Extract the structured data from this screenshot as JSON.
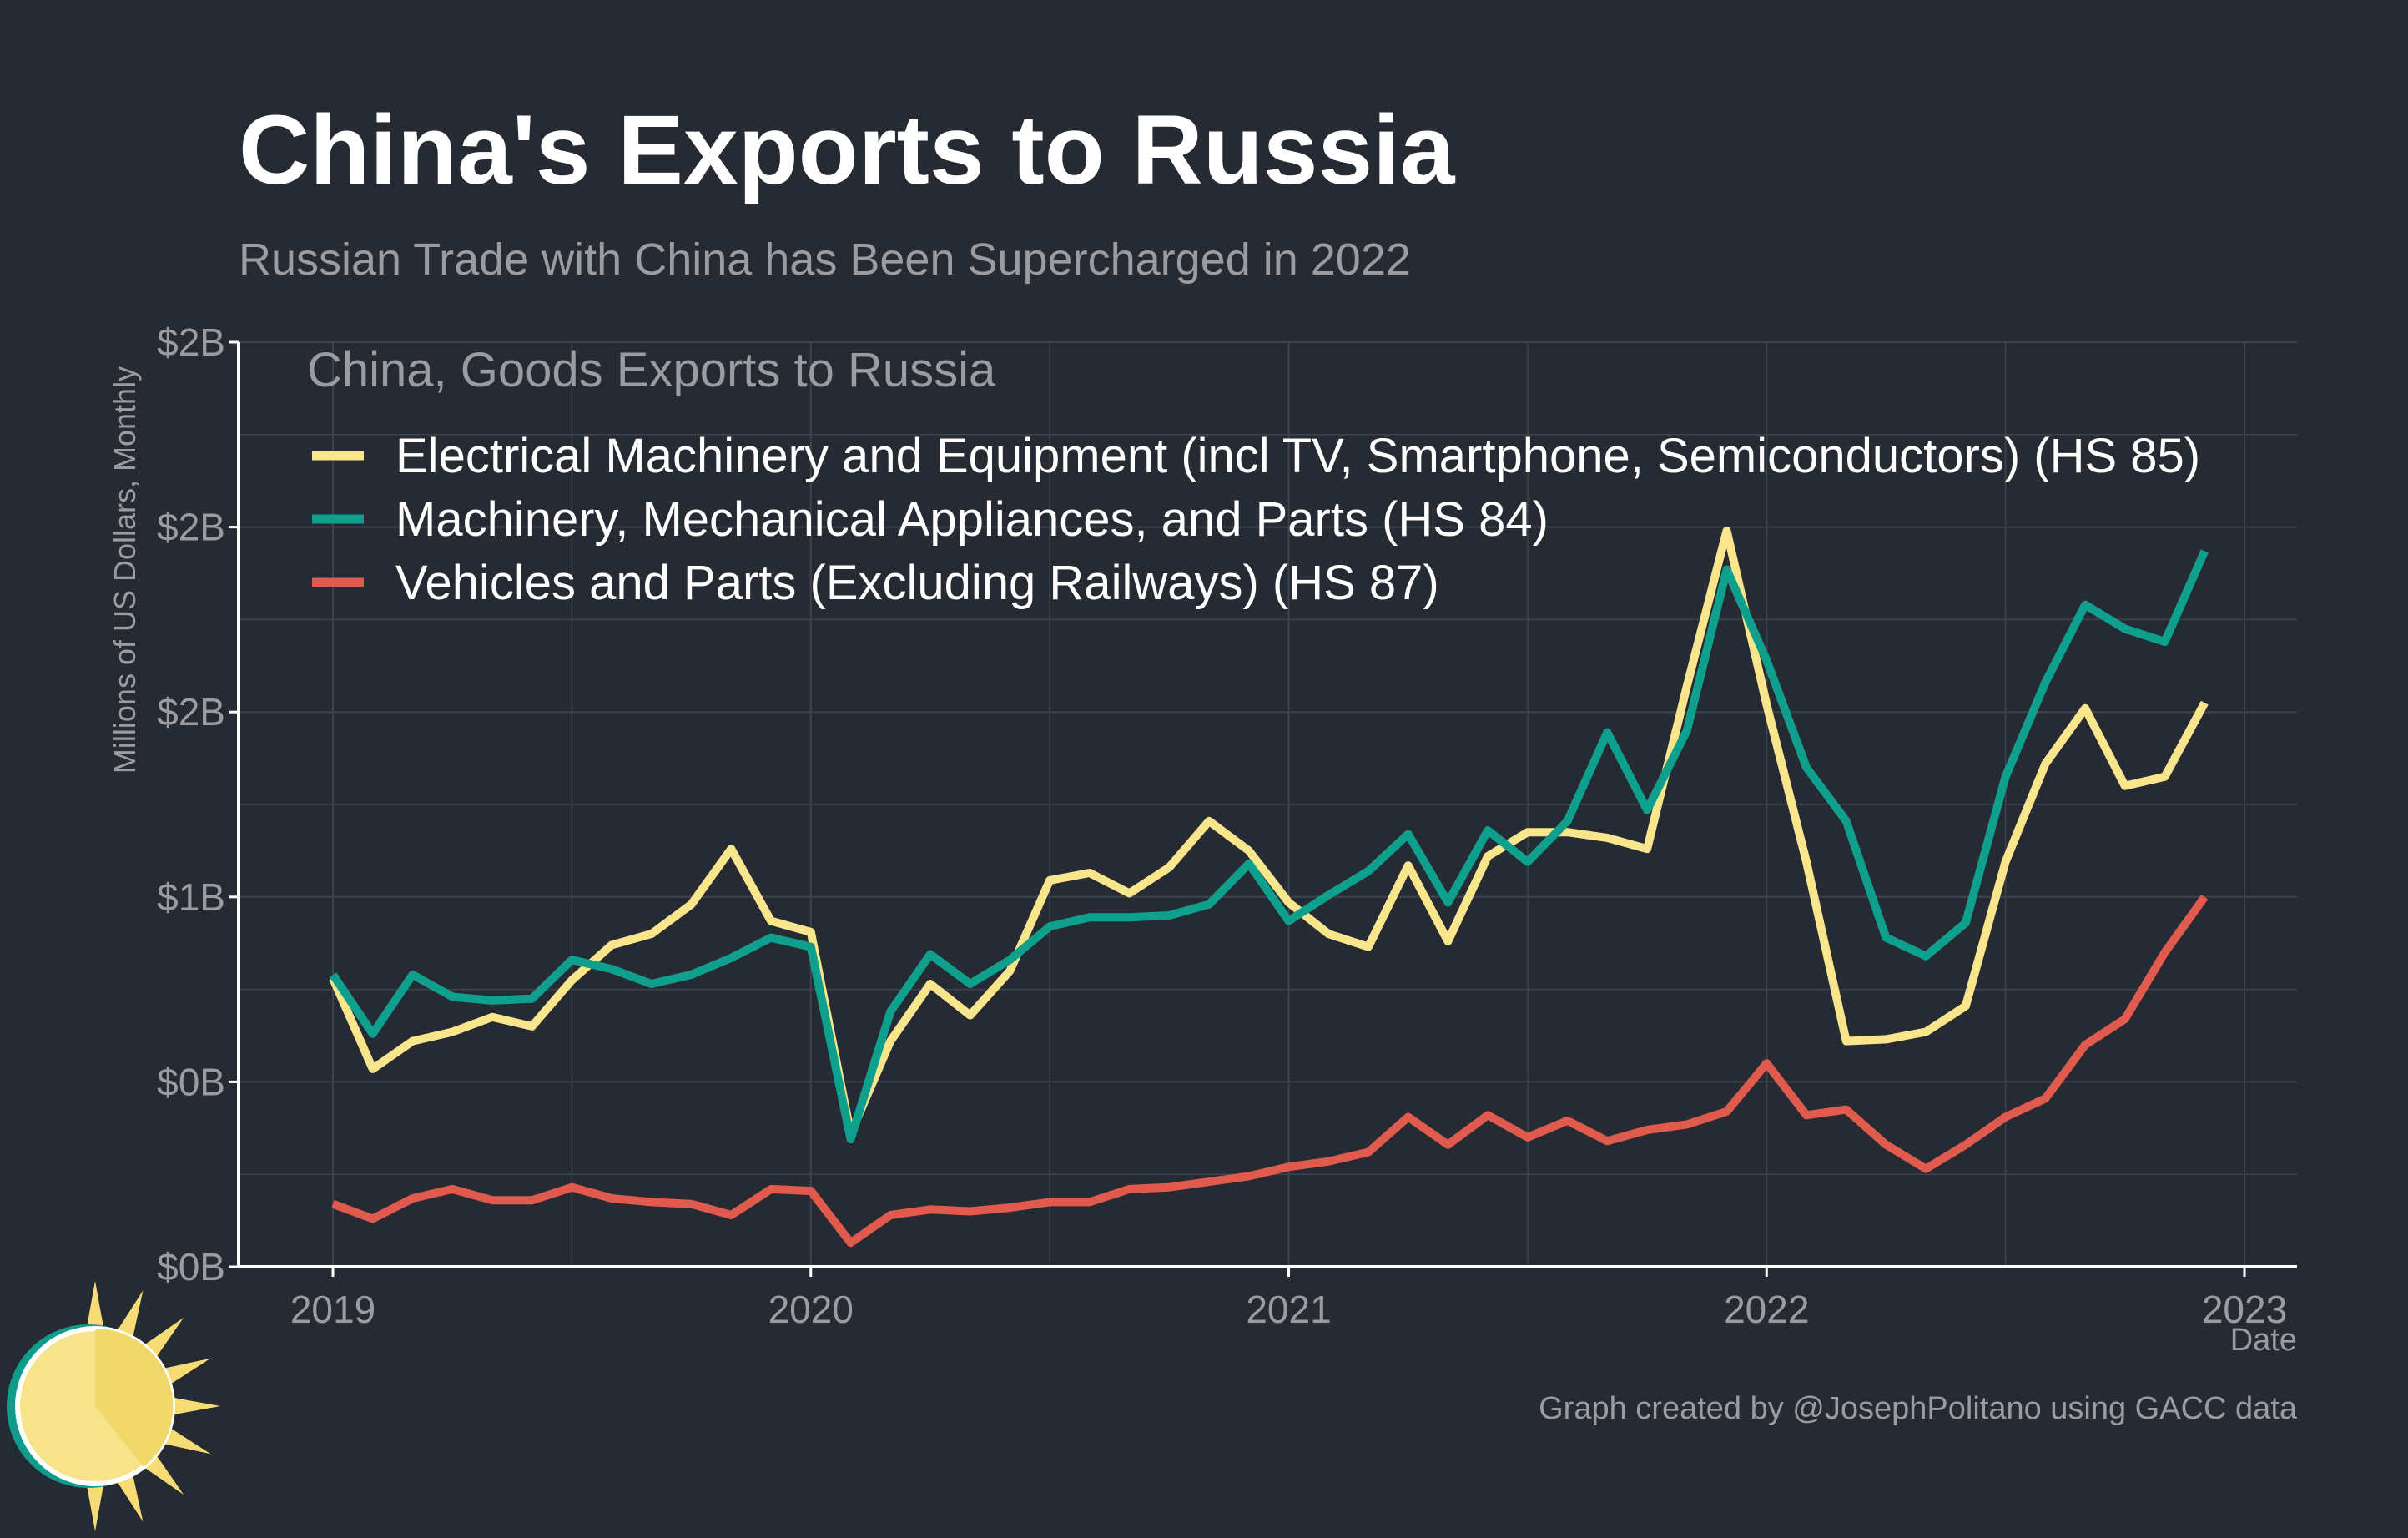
{
  "title": "China's Exports to Russia",
  "subtitle": "Russian Trade with China has Been Supercharged in 2022",
  "caption": "Graph created by @JosephPolitano using GACC data",
  "colors": {
    "background": "#252a33",
    "title": "#ffffff",
    "muted_text": "#9a9ca2",
    "grid": "#3e434c",
    "axis": "#ffffff",
    "logo_sun": "#f5dc74",
    "logo_ring": "#0f9c8c"
  },
  "chart_data": {
    "type": "line",
    "legend_title": "China, Goods Exports to Russia",
    "legend_position": "top-left",
    "xlabel": "Date",
    "ylabel": "Millions of US Dollars, Monthly",
    "x_ticks": [
      "2019",
      "2020",
      "2021",
      "2022",
      "2023"
    ],
    "y_ticks": [
      "$0B",
      "$0B",
      "$1B",
      "$2B",
      "$2B",
      "$2B"
    ],
    "ylim": [
      0,
      2500
    ],
    "grid": true,
    "x": [
      "2019-01",
      "2019-02",
      "2019-03",
      "2019-04",
      "2019-05",
      "2019-06",
      "2019-07",
      "2019-08",
      "2019-09",
      "2019-10",
      "2019-11",
      "2019-12",
      "2020-01",
      "2020-02",
      "2020-03",
      "2020-04",
      "2020-05",
      "2020-06",
      "2020-07",
      "2020-08",
      "2020-09",
      "2020-10",
      "2020-11",
      "2020-12",
      "2021-01",
      "2021-02",
      "2021-03",
      "2021-04",
      "2021-05",
      "2021-06",
      "2021-07",
      "2021-08",
      "2021-09",
      "2021-10",
      "2021-11",
      "2021-12",
      "2022-01",
      "2022-02",
      "2022-03",
      "2022-04",
      "2022-05",
      "2022-06",
      "2022-07",
      "2022-08",
      "2022-09",
      "2022-10",
      "2022-11",
      "2022-12"
    ],
    "series": [
      {
        "name": "Electrical Machinery and Equipment (incl TV, Smartphone, Semiconductors) (HS 85)",
        "color": "#f8e58c",
        "values": [
          780,
          535,
          610,
          635,
          675,
          650,
          775,
          870,
          900,
          980,
          1130,
          935,
          905,
          360,
          610,
          765,
          680,
          800,
          1045,
          1065,
          1010,
          1080,
          1205,
          1125,
          985,
          900,
          865,
          1085,
          880,
          1110,
          1175,
          1175,
          1160,
          1130,
          1570,
          1990,
          1520,
          1095,
          610,
          615,
          635,
          705,
          1095,
          1360,
          1510,
          1300,
          1325,
          1525
        ]
      },
      {
        "name": "Machinery, Mechanical Appliances, and Parts (HS 84)",
        "color": "#0ea08d",
        "values": [
          790,
          630,
          790,
          730,
          720,
          725,
          830,
          805,
          765,
          790,
          835,
          890,
          865,
          345,
          690,
          845,
          765,
          830,
          920,
          945,
          945,
          950,
          980,
          1090,
          935,
          1005,
          1070,
          1170,
          985,
          1180,
          1095,
          1205,
          1445,
          1235,
          1450,
          1885,
          1640,
          1350,
          1205,
          890,
          840,
          930,
          1325,
          1580,
          1790,
          1725,
          1690,
          1935
        ]
      },
      {
        "name": "Vehicles and Parts (Excluding Railways) (HS 87)",
        "color": "#e05a4e",
        "values": [
          170,
          130,
          185,
          210,
          180,
          180,
          215,
          185,
          175,
          170,
          140,
          210,
          205,
          65,
          140,
          155,
          150,
          160,
          175,
          175,
          210,
          215,
          230,
          245,
          270,
          285,
          310,
          405,
          330,
          410,
          350,
          395,
          340,
          370,
          385,
          420,
          550,
          410,
          425,
          330,
          265,
          330,
          405,
          455,
          600,
          670,
          850,
          1000
        ]
      }
    ]
  }
}
